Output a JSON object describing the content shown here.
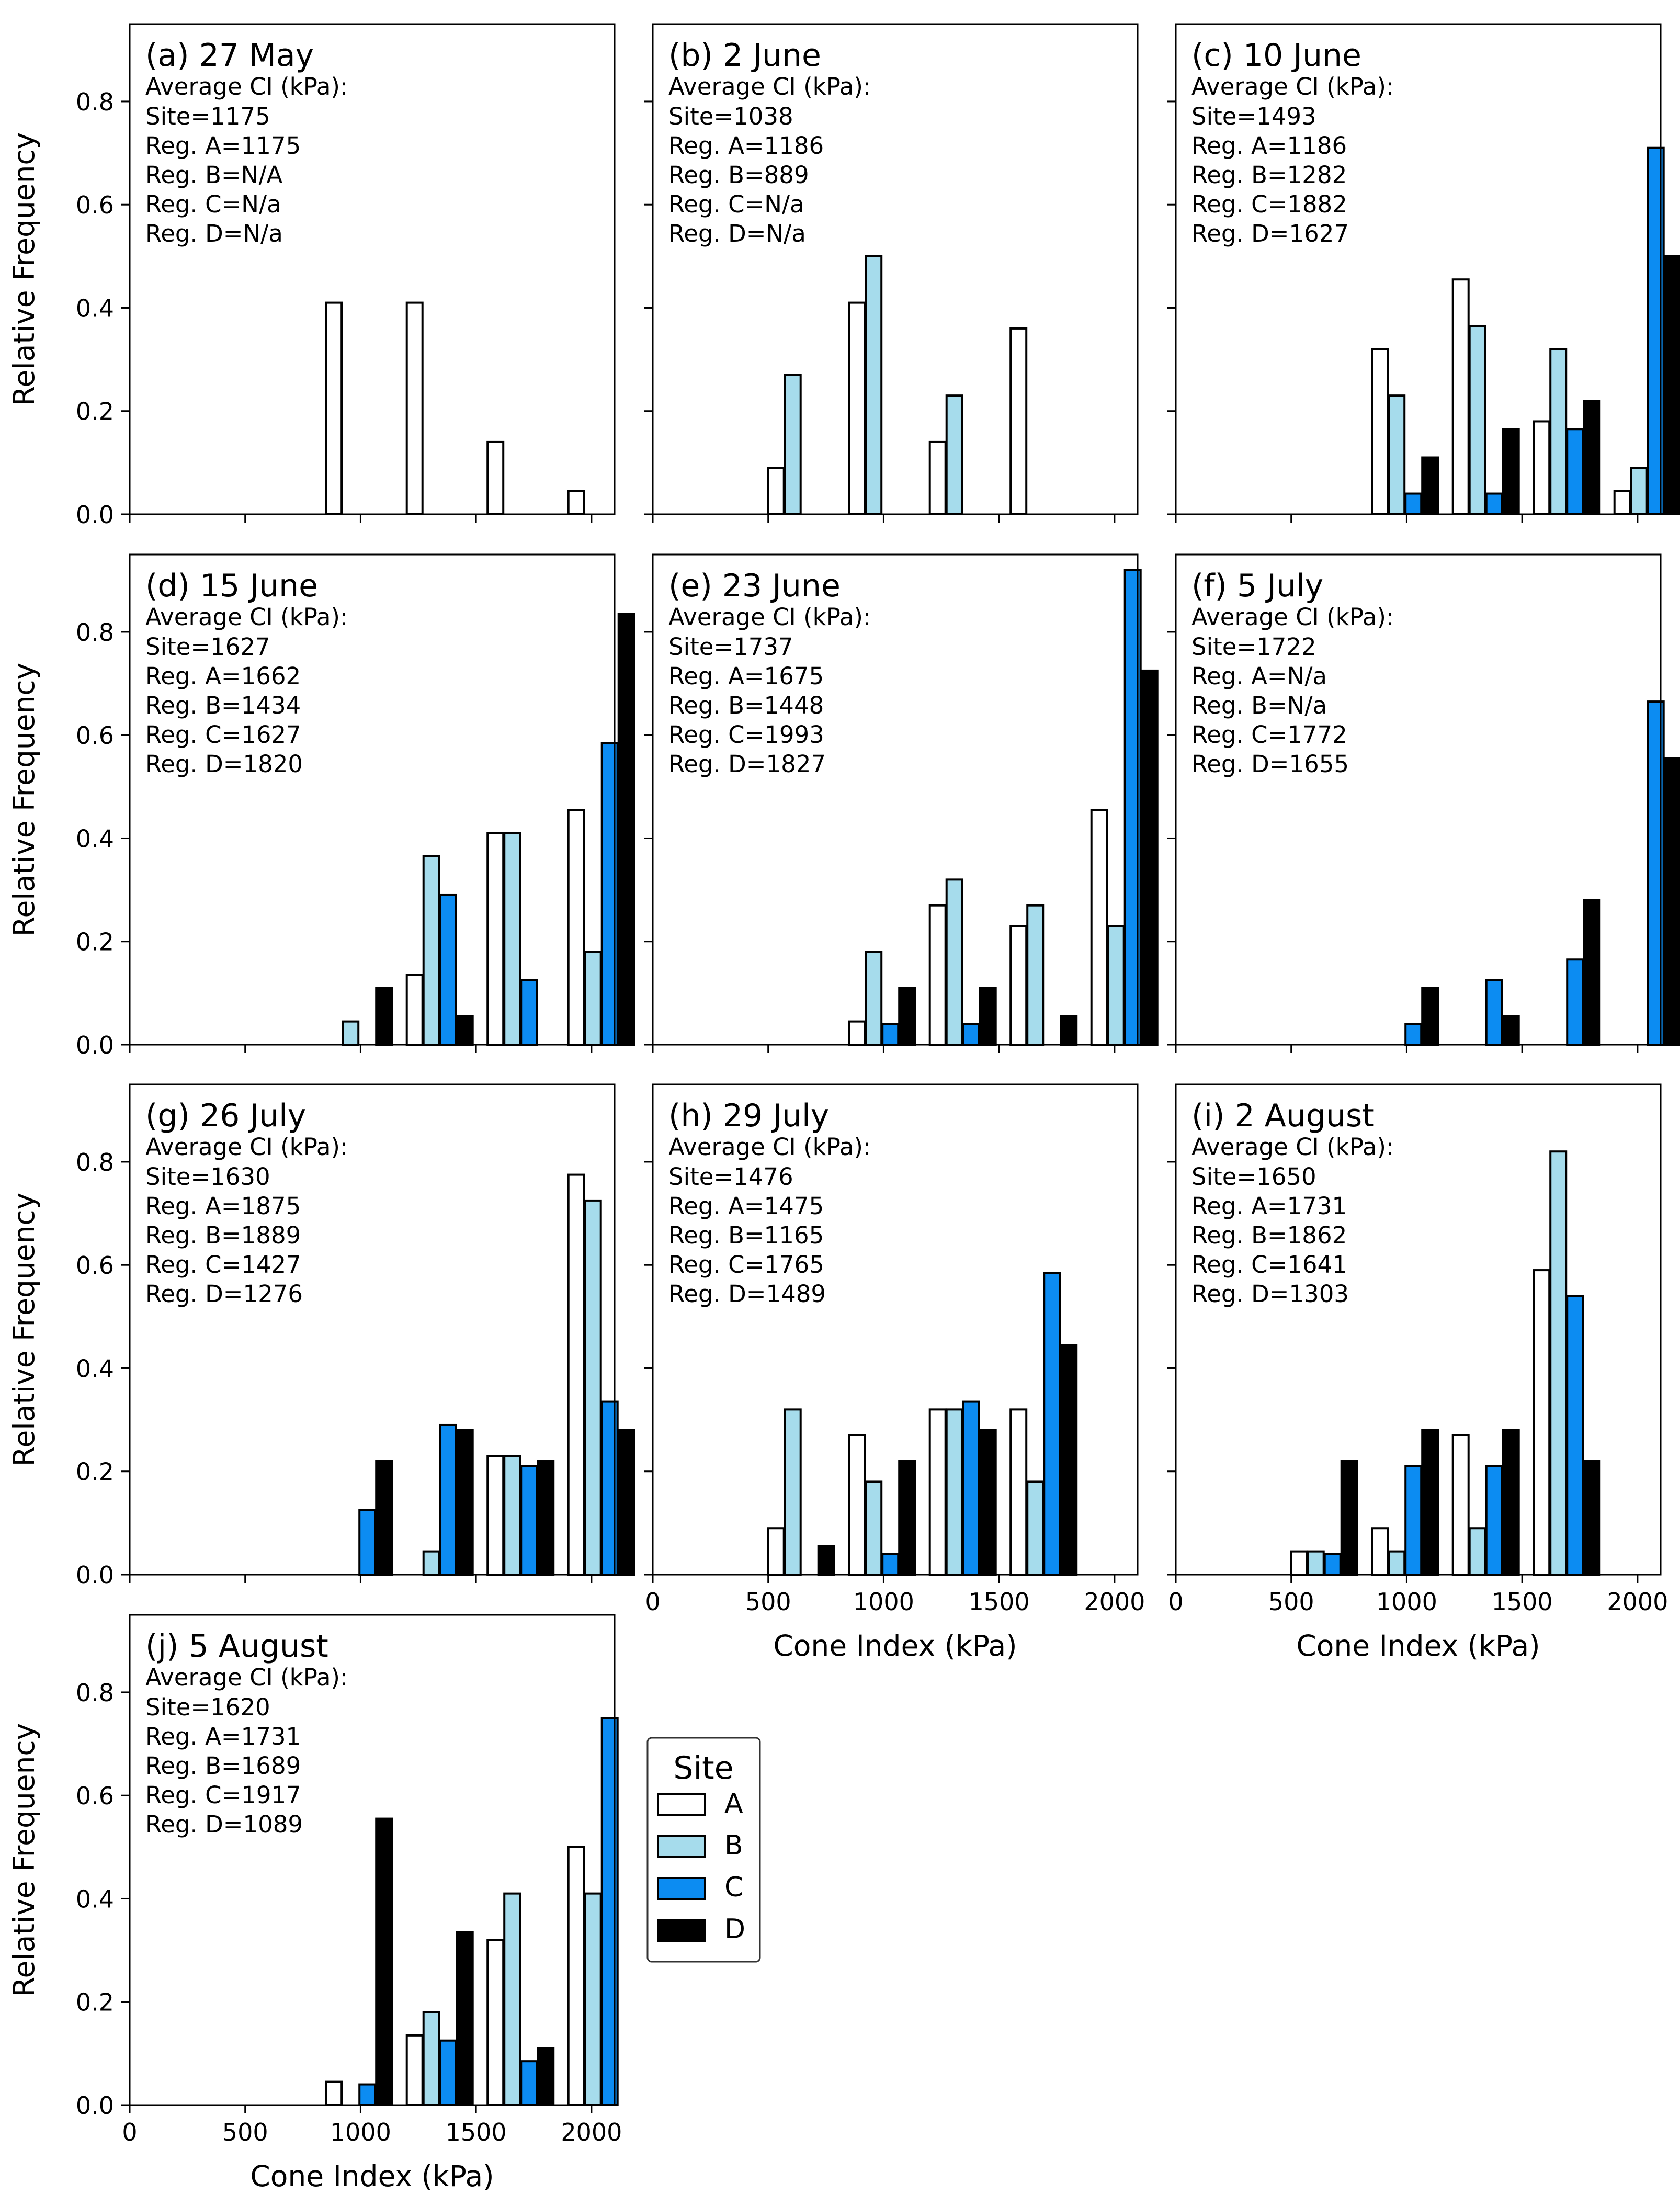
{
  "legend": {
    "title": "Site",
    "items": [
      {
        "label": "A",
        "color": "#ffffff"
      },
      {
        "label": "B",
        "color": "#a6dcec"
      },
      {
        "label": "C",
        "color": "#0c8cf2"
      },
      {
        "label": "D",
        "color": "#000000"
      }
    ]
  },
  "chart_data": [
    {
      "id": "a",
      "type": "bar",
      "title": "(a) 27 May",
      "xlabel": "",
      "ylabel": "Relative Frequency",
      "xlim": [
        0,
        2100
      ],
      "ylim": [
        0,
        0.95
      ],
      "stats_heading": "Average CI (kPa):",
      "stats": [
        "Site=1175",
        "Reg. A=1175",
        "Reg. B=N/A",
        "Reg. C=N/a",
        "Reg. D=N/a"
      ],
      "bins": [
        500,
        850,
        1200,
        1550,
        1900
      ],
      "series": [
        {
          "name": "A",
          "values": [
            0,
            0.41,
            0.41,
            0.14,
            0.045
          ]
        },
        {
          "name": "B",
          "values": [
            0,
            0,
            0,
            0,
            0
          ]
        },
        {
          "name": "C",
          "values": [
            0,
            0,
            0,
            0,
            0
          ]
        },
        {
          "name": "D",
          "values": [
            0,
            0,
            0,
            0,
            0
          ]
        }
      ]
    },
    {
      "id": "b",
      "type": "bar",
      "title": "(b) 2 June",
      "xlabel": "",
      "ylabel": "",
      "xlim": [
        0,
        2100
      ],
      "ylim": [
        0,
        0.95
      ],
      "stats_heading": "Average CI (kPa):",
      "stats": [
        "Site=1038",
        "Reg. A=1186",
        "Reg. B=889",
        "Reg. C=N/a",
        "Reg. D=N/a"
      ],
      "bins": [
        500,
        850,
        1200,
        1550,
        1900
      ],
      "series": [
        {
          "name": "A",
          "values": [
            0.09,
            0.41,
            0.14,
            0.36,
            0
          ]
        },
        {
          "name": "B",
          "values": [
            0.27,
            0.5,
            0.23,
            0,
            0
          ]
        },
        {
          "name": "C",
          "values": [
            0,
            0,
            0,
            0,
            0
          ]
        },
        {
          "name": "D",
          "values": [
            0,
            0,
            0,
            0,
            0
          ]
        }
      ]
    },
    {
      "id": "c",
      "type": "bar",
      "title": "(c) 10 June",
      "xlabel": "",
      "ylabel": "",
      "xlim": [
        0,
        2100
      ],
      "ylim": [
        0,
        0.95
      ],
      "stats_heading": "Average CI (kPa):",
      "stats": [
        "Site=1493",
        "Reg. A=1186",
        "Reg. B=1282",
        "Reg. C=1882",
        "Reg. D=1627"
      ],
      "bins": [
        500,
        850,
        1200,
        1550,
        1900
      ],
      "series": [
        {
          "name": "A",
          "values": [
            0,
            0.32,
            0.455,
            0.18,
            0.045
          ]
        },
        {
          "name": "B",
          "values": [
            0,
            0.23,
            0.365,
            0.32,
            0.09
          ]
        },
        {
          "name": "C",
          "values": [
            0,
            0.04,
            0.04,
            0.165,
            0.71
          ]
        },
        {
          "name": "D",
          "values": [
            0,
            0.11,
            0.165,
            0.22,
            0.5
          ]
        }
      ]
    },
    {
      "id": "d",
      "type": "bar",
      "title": "(d) 15 June",
      "xlabel": "",
      "ylabel": "Relative Frequency",
      "xlim": [
        0,
        2100
      ],
      "ylim": [
        0,
        0.95
      ],
      "stats_heading": "Average CI (kPa):",
      "stats": [
        "Site=1627",
        "Reg. A=1662",
        "Reg. B=1434",
        "Reg. C=1627",
        "Reg. D=1820"
      ],
      "bins": [
        500,
        850,
        1200,
        1550,
        1900
      ],
      "series": [
        {
          "name": "A",
          "values": [
            0,
            0,
            0.135,
            0.41,
            0.455
          ]
        },
        {
          "name": "B",
          "values": [
            0,
            0.045,
            0.365,
            0.41,
            0.18
          ]
        },
        {
          "name": "C",
          "values": [
            0,
            0,
            0.29,
            0.125,
            0.585
          ]
        },
        {
          "name": "D",
          "values": [
            0,
            0.11,
            0.055,
            0,
            0.835
          ]
        }
      ]
    },
    {
      "id": "e",
      "type": "bar",
      "title": "(e) 23 June",
      "xlabel": "",
      "ylabel": "",
      "xlim": [
        0,
        2100
      ],
      "ylim": [
        0,
        0.95
      ],
      "stats_heading": "Average CI (kPa):",
      "stats": [
        "Site=1737",
        "Reg. A=1675",
        "Reg. B=1448",
        "Reg. C=1993",
        "Reg. D=1827"
      ],
      "bins": [
        500,
        850,
        1200,
        1550,
        1900
      ],
      "series": [
        {
          "name": "A",
          "values": [
            0,
            0.045,
            0.27,
            0.23,
            0.455
          ]
        },
        {
          "name": "B",
          "values": [
            0,
            0.18,
            0.32,
            0.27,
            0.23
          ]
        },
        {
          "name": "C",
          "values": [
            0,
            0.04,
            0.04,
            0,
            0.92
          ]
        },
        {
          "name": "D",
          "values": [
            0,
            0.11,
            0.11,
            0.055,
            0.725
          ]
        }
      ]
    },
    {
      "id": "f",
      "type": "bar",
      "title": "(f) 5 July",
      "xlabel": "",
      "ylabel": "",
      "xlim": [
        0,
        2100
      ],
      "ylim": [
        0,
        0.95
      ],
      "stats_heading": "Average CI (kPa):",
      "stats": [
        "Site=1722",
        "Reg. A=N/a",
        "Reg. B=N/a",
        "Reg. C=1772",
        "Reg. D=1655"
      ],
      "bins": [
        500,
        850,
        1200,
        1550,
        1900
      ],
      "series": [
        {
          "name": "A",
          "values": [
            0,
            0,
            0,
            0,
            0
          ]
        },
        {
          "name": "B",
          "values": [
            0,
            0,
            0,
            0,
            0
          ]
        },
        {
          "name": "C",
          "values": [
            0,
            0.04,
            0.125,
            0.165,
            0.665
          ]
        },
        {
          "name": "D",
          "values": [
            0,
            0.11,
            0.055,
            0.28,
            0.555
          ]
        }
      ]
    },
    {
      "id": "g",
      "type": "bar",
      "title": "(g) 26 July",
      "xlabel": "",
      "ylabel": "Relative Frequency",
      "xlim": [
        0,
        2100
      ],
      "ylim": [
        0,
        0.95
      ],
      "stats_heading": "Average CI (kPa):",
      "stats": [
        "Site=1630",
        "Reg. A=1875",
        "Reg. B=1889",
        "Reg. C=1427",
        "Reg. D=1276"
      ],
      "bins": [
        500,
        850,
        1200,
        1550,
        1900
      ],
      "series": [
        {
          "name": "A",
          "values": [
            0,
            0,
            0,
            0.23,
            0.775
          ]
        },
        {
          "name": "B",
          "values": [
            0,
            0,
            0.045,
            0.23,
            0.725
          ]
        },
        {
          "name": "C",
          "values": [
            0,
            0.125,
            0.29,
            0.21,
            0.335
          ]
        },
        {
          "name": "D",
          "values": [
            0,
            0.22,
            0.28,
            0.22,
            0.28
          ]
        }
      ]
    },
    {
      "id": "h",
      "type": "bar",
      "title": "(h) 29 July",
      "xlabel": "Cone Index (kPa)",
      "ylabel": "",
      "xlim": [
        0,
        2100
      ],
      "ylim": [
        0,
        0.95
      ],
      "stats_heading": "Average CI (kPa):",
      "stats": [
        "Site=1476",
        "Reg. A=1475",
        "Reg. B=1165",
        "Reg. C=1765",
        "Reg. D=1489"
      ],
      "bins": [
        500,
        850,
        1200,
        1550,
        1900
      ],
      "series": [
        {
          "name": "A",
          "values": [
            0.09,
            0.27,
            0.32,
            0.32,
            0
          ]
        },
        {
          "name": "B",
          "values": [
            0.32,
            0.18,
            0.32,
            0.18,
            0
          ]
        },
        {
          "name": "C",
          "values": [
            0,
            0.04,
            0.335,
            0.585,
            0
          ]
        },
        {
          "name": "D",
          "values": [
            0.055,
            0.22,
            0.28,
            0.445,
            0
          ]
        }
      ]
    },
    {
      "id": "i",
      "type": "bar",
      "title": "(i) 2 August",
      "xlabel": "Cone Index (kPa)",
      "ylabel": "",
      "xlim": [
        0,
        2100
      ],
      "ylim": [
        0,
        0.95
      ],
      "stats_heading": "Average CI (kPa):",
      "stats": [
        "Site=1650",
        "Reg. A=1731",
        "Reg. B=1862",
        "Reg. C=1641",
        "Reg. D=1303"
      ],
      "bins": [
        500,
        850,
        1200,
        1550,
        1900
      ],
      "series": [
        {
          "name": "A",
          "values": [
            0.045,
            0.09,
            0.27,
            0.59,
            0
          ]
        },
        {
          "name": "B",
          "values": [
            0.045,
            0.045,
            0.09,
            0.82,
            0
          ]
        },
        {
          "name": "C",
          "values": [
            0.04,
            0.21,
            0.21,
            0.54,
            0
          ]
        },
        {
          "name": "D",
          "values": [
            0.22,
            0.28,
            0.28,
            0.22,
            0
          ]
        }
      ]
    },
    {
      "id": "j",
      "type": "bar",
      "title": "(j) 5 August",
      "xlabel": "Cone Index (kPa)",
      "ylabel": "Relative Frequency",
      "xlim": [
        0,
        2100
      ],
      "ylim": [
        0,
        0.95
      ],
      "stats_heading": "Average CI (kPa):",
      "stats": [
        "Site=1620",
        "Reg. A=1731",
        "Reg. B=1689",
        "Reg. C=1917",
        "Reg. D=1089"
      ],
      "bins": [
        500,
        850,
        1200,
        1550,
        1900
      ],
      "series": [
        {
          "name": "A",
          "values": [
            0,
            0.045,
            0.135,
            0.32,
            0.5
          ]
        },
        {
          "name": "B",
          "values": [
            0,
            0,
            0.18,
            0.41,
            0.41
          ]
        },
        {
          "name": "C",
          "values": [
            0,
            0.04,
            0.125,
            0.085,
            0.75
          ]
        },
        {
          "name": "D",
          "values": [
            0,
            0.555,
            0.335,
            0.11,
            0
          ]
        }
      ]
    }
  ],
  "axes": {
    "xticks": [
      0,
      500,
      1000,
      1500,
      2000
    ],
    "yticks": [
      0.0,
      0.2,
      0.4,
      0.6,
      0.8
    ],
    "ytick_labels": [
      "0.0",
      "0.2",
      "0.4",
      "0.6",
      "0.8"
    ]
  }
}
